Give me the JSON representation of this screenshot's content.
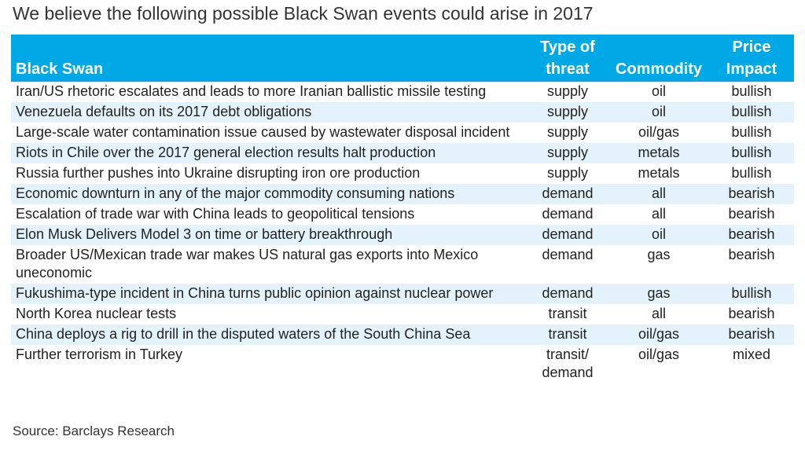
{
  "title": "We believe the following possible Black Swan events could arise in 2017",
  "headers": {
    "black_swan": "Black Swan",
    "threat_line1": "Type of",
    "threat_line2": "threat",
    "commodity": "Commodity",
    "impact_line1": "Price",
    "impact_line2": "Impact"
  },
  "rows": [
    {
      "event": "Iran/US rhetoric escalates and leads to more Iranian ballistic missile testing",
      "threat": "supply",
      "commodity": "oil",
      "impact": "bullish"
    },
    {
      "event": "Venezuela defaults on its 2017 debt obligations",
      "threat": "supply",
      "commodity": "oil",
      "impact": "bullish"
    },
    {
      "event": "Large-scale water contamination issue caused by wastewater disposal incident",
      "threat": "supply",
      "commodity": "oil/gas",
      "impact": "bullish"
    },
    {
      "event": "Riots in Chile over the 2017 general election results halt production",
      "threat": "supply",
      "commodity": "metals",
      "impact": "bullish"
    },
    {
      "event": "Russia further pushes into Ukraine disrupting iron ore production",
      "threat": "supply",
      "commodity": "metals",
      "impact": "bullish"
    },
    {
      "event": "Economic downturn in any of the major commodity consuming nations",
      "threat": "demand",
      "commodity": "all",
      "impact": "bearish"
    },
    {
      "event": "Escalation of trade war with China leads to geopolitical tensions",
      "threat": "demand",
      "commodity": "all",
      "impact": "bearish"
    },
    {
      "event": "Elon Musk Delivers Model 3 on time or battery breakthrough",
      "threat": "demand",
      "commodity": "oil",
      "impact": "bearish"
    },
    {
      "event": "Broader US/Mexican trade war makes US natural gas exports into Mexico uneconomic",
      "threat": "demand",
      "commodity": "gas",
      "impact": "bearish"
    },
    {
      "event": "Fukushima-type incident in China turns public opinion against nuclear power",
      "threat": "demand",
      "commodity": "gas",
      "impact": "bullish"
    },
    {
      "event": "North Korea nuclear tests",
      "threat": "transit",
      "commodity": "all",
      "impact": "bearish"
    },
    {
      "event": "China deploys a rig to drill in the disputed waters of the South China Sea",
      "threat": "transit",
      "commodity": "oil/gas",
      "impact": "bearish"
    },
    {
      "event": "Further terrorism in Turkey",
      "threat": "transit/ demand",
      "commodity": "oil/gas",
      "impact": "mixed"
    }
  ],
  "source": "Source: Barclays Research",
  "colors": {
    "header_bg": "#00a9e6",
    "stripe": "#e4f3fb"
  }
}
